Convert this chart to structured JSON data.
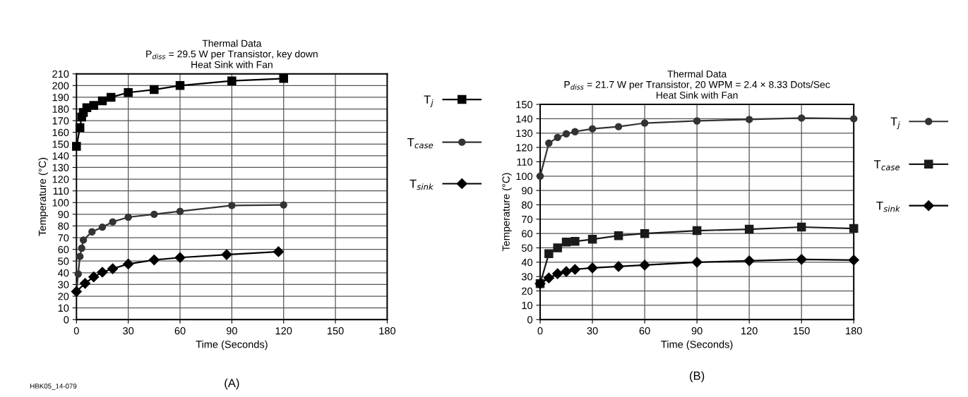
{
  "chart_data": [
    {
      "type": "line",
      "title": "Thermal Data",
      "subtitle": "P$_{diss}$ = 29.5 W per Transistor, key down\nHeat Sink with Fan",
      "xlabel": "Time (Seconds)",
      "ylabel": "Temperature (°C)",
      "xlim": [
        0,
        180
      ],
      "xticks": [
        0,
        30,
        60,
        90,
        120,
        150,
        180
      ],
      "ylim": [
        0,
        210
      ],
      "yticks": [
        0,
        10,
        20,
        30,
        40,
        50,
        60,
        70,
        80,
        90,
        100,
        110,
        120,
        130,
        140,
        150,
        160,
        170,
        180,
        190,
        200,
        210
      ],
      "grid": true,
      "legend": "right",
      "line_style": "solid",
      "annotations": [
        "(A)",
        "HBK05_14-079"
      ],
      "series": [
        {
          "name": "T$_{j}$",
          "color": "#000000",
          "marker": "square",
          "x": [
            0,
            2,
            3,
            4,
            6,
            10,
            15,
            20,
            30,
            45,
            60,
            90,
            120
          ],
          "values": [
            148,
            164,
            173,
            177,
            181,
            183,
            187,
            190,
            194,
            196.5,
            200,
            204,
            206
          ]
        },
        {
          "name": "T$_{case}$",
          "color": "#333333",
          "marker": "circle",
          "x": [
            0,
            1,
            2,
            3,
            4,
            9,
            15,
            21,
            30,
            45,
            60,
            90,
            120
          ],
          "values": [
            24,
            39,
            54,
            61,
            68,
            75,
            79,
            83.5,
            87.5,
            90,
            92.5,
            97.5,
            98
          ]
        },
        {
          "name": "T$_{sink}$",
          "color": "#000000",
          "marker": "diamond",
          "x": [
            0,
            5,
            10,
            15,
            21,
            30,
            45,
            60,
            87,
            117
          ],
          "values": [
            24,
            31,
            36.5,
            40.5,
            43.5,
            47.5,
            51,
            53,
            55.5,
            58
          ]
        }
      ]
    },
    {
      "type": "line",
      "title": "Thermal Data",
      "subtitle": "P$_{diss}$ = 21.7 W per Transistor, 20 WPM = 2.4 × 8.33 Dots/Sec\nHeat Sink with Fan",
      "xlabel": "Time (Seconds)",
      "ylabel": "Temperature (°C)",
      "xlim": [
        0,
        180
      ],
      "xticks": [
        0,
        30,
        60,
        90,
        120,
        150,
        180
      ],
      "ylim": [
        0,
        150
      ],
      "yticks": [
        0,
        10,
        20,
        30,
        40,
        50,
        60,
        70,
        80,
        90,
        100,
        110,
        120,
        130,
        140,
        150
      ],
      "grid": true,
      "legend": "right",
      "line_style": "solid",
      "annotations": [
        "(B)"
      ],
      "series": [
        {
          "name": "T$_{j}$",
          "color": "#333333",
          "marker": "circle",
          "x": [
            0,
            5,
            10,
            15,
            20,
            30,
            45,
            60,
            90,
            120,
            150,
            180
          ],
          "values": [
            100,
            123,
            127,
            129.5,
            131,
            133,
            134.5,
            137,
            138.5,
            139.5,
            140.5,
            140
          ]
        },
        {
          "name": "T$_{case}$",
          "color": "#1a1a1a",
          "marker": "square",
          "x": [
            0,
            5,
            10,
            15,
            20,
            30,
            45,
            60,
            90,
            120,
            150,
            180
          ],
          "values": [
            25,
            46,
            50,
            54,
            54.5,
            56,
            58.5,
            60,
            62,
            63,
            64.5,
            63.5
          ]
        },
        {
          "name": "T$_{sink}$",
          "color": "#000000",
          "marker": "diamond",
          "x": [
            0,
            5,
            10,
            15,
            20,
            30,
            45,
            60,
            90,
            120,
            150,
            180
          ],
          "values": [
            25,
            29,
            32,
            33.5,
            35,
            36,
            37,
            38,
            40,
            41,
            42,
            41.5
          ]
        }
      ]
    }
  ]
}
